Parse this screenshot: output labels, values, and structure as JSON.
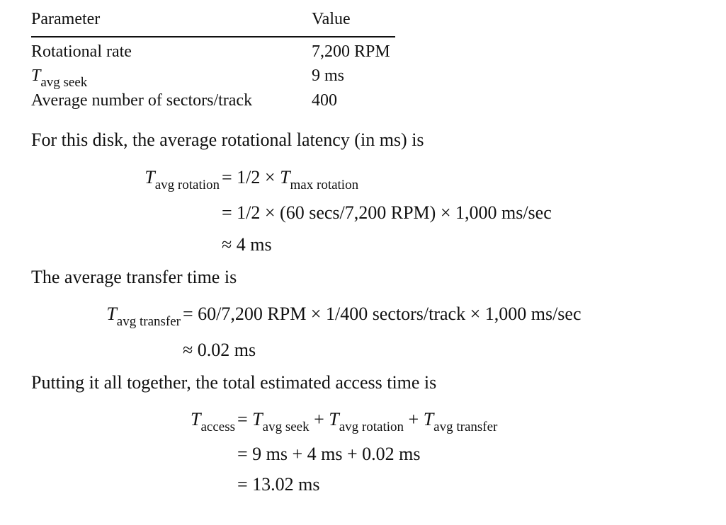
{
  "table": {
    "headers": [
      "Parameter",
      "Value"
    ],
    "rows": [
      {
        "parameter_symbol": "",
        "parameter_sub": "",
        "parameter": "Rotational rate",
        "value": "7,200 RPM"
      },
      {
        "parameter_symbol": "T",
        "parameter_sub": "avg seek",
        "parameter": "",
        "value": "9 ms"
      },
      {
        "parameter_symbol": "",
        "parameter_sub": "",
        "parameter": "Average number of sectors/track",
        "value": "400"
      }
    ]
  },
  "rotation": {
    "intro": "For this disk, the average rotational latency (in ms) is",
    "lhs_symbol": "T",
    "lhs_sub": "avg rotation",
    "line1_rhs_prefix": "= 1/2 × ",
    "line1_rhs_symbol": "T",
    "line1_rhs_sub": "max rotation",
    "line2": "= 1/2 × (60 secs/7,200 RPM) × 1,000 ms/sec",
    "line3": "≈ 4 ms"
  },
  "transfer": {
    "intro": "The average transfer time is",
    "lhs_symbol": "T",
    "lhs_sub": "avg transfer",
    "line1_rhs": "= 60/7,200 RPM × 1/400 sectors/track × 1,000 ms/sec",
    "line2": "≈ 0.02 ms"
  },
  "access": {
    "intro": "Putting it all together, the total estimated access time is",
    "lhs_symbol": "T",
    "lhs_sub": "access",
    "eq": "= ",
    "t1_symbol": "T",
    "t1_sub": "avg seek",
    "plus": " + ",
    "t2_symbol": "T",
    "t2_sub": "avg rotation",
    "t3_symbol": "T",
    "t3_sub": "avg transfer",
    "line2": "= 9 ms + 4 ms + 0.02 ms",
    "line3": "= 13.02 ms"
  }
}
